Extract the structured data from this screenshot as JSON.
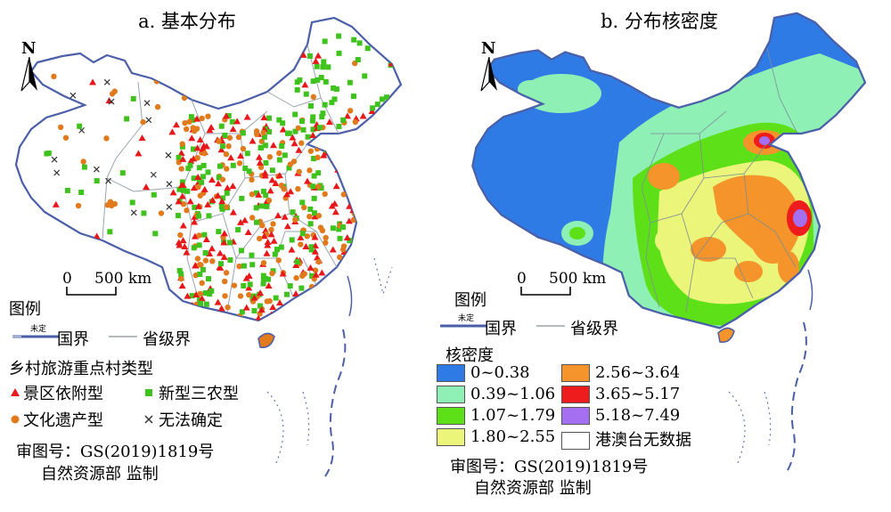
{
  "panel_a": {
    "title": "a. 基本分布",
    "north": "N",
    "scale_zero": "0",
    "scale_label": "500 km",
    "legend_title": "图例",
    "national_boundary_tag": "未定",
    "national_boundary": "国界",
    "provincial_boundary": "省级界",
    "types_title": "乡村旅游重点村类型",
    "types": [
      {
        "label": "景区依附型",
        "color": "#e8171a",
        "symbol": "triangle"
      },
      {
        "label": "新型三农型",
        "color": "#3fc21d",
        "symbol": "square"
      },
      {
        "label": "文化遗产型",
        "color": "#e07a1c",
        "symbol": "circle"
      },
      {
        "label": "无法确定",
        "color": "#333333",
        "symbol": "cross"
      }
    ],
    "review_no": "审图号：GS(2019)1819号",
    "supervisor": "自然资源部 监制"
  },
  "panel_b": {
    "title": "b. 分布核密度",
    "north": "N",
    "scale_zero": "0",
    "scale_label": "500 km",
    "legend_title": "图例",
    "national_boundary_tag": "未定",
    "national_boundary": "国界",
    "provincial_boundary": "省级界",
    "density_title": "核密度",
    "classes": [
      {
        "label": "0~0.38",
        "color": "#2f7be6"
      },
      {
        "label": "0.39~1.06",
        "color": "#8ff0b6"
      },
      {
        "label": "1.07~1.79",
        "color": "#5de018"
      },
      {
        "label": "1.80~2.55",
        "color": "#eaf57a"
      },
      {
        "label": "2.56~3.64",
        "color": "#f4942a"
      },
      {
        "label": "3.65~5.17",
        "color": "#ee1c1c"
      },
      {
        "label": "5.18~7.49",
        "color": "#a46ff0"
      },
      {
        "label": "港澳台无数据",
        "color": "#ffffff"
      }
    ],
    "review_no": "审图号：GS(2019)1819号",
    "supervisor": "自然资源部 监制"
  }
}
